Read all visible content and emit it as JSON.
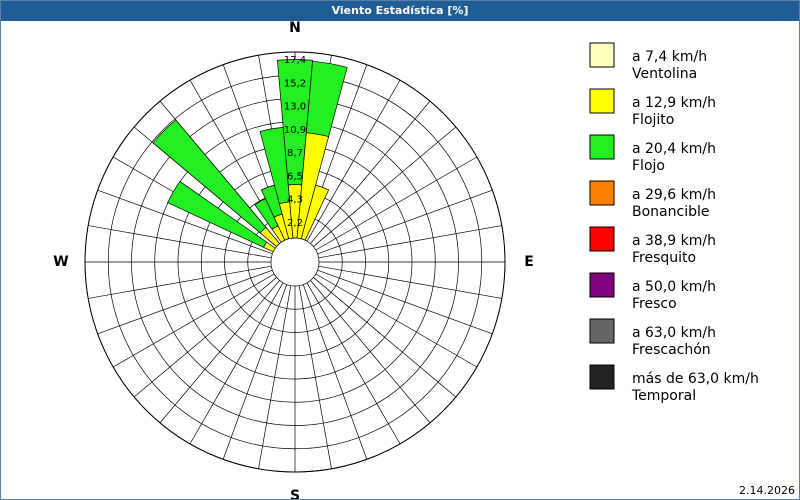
{
  "title": "Viento Estadística [%]",
  "footer": "2.14.2026",
  "chart_data": {
    "type": "wind_rose",
    "direction_labels": [
      "N",
      "E",
      "S",
      "W"
    ],
    "x": [
      300,
      315,
      330,
      340,
      350,
      0,
      10,
      20
    ],
    "sector_width": 10,
    "ylim": [
      0,
      17.4
    ],
    "yticks": [
      {
        "value": 2.175,
        "label": "2,2"
      },
      {
        "value": 4.35,
        "label": "4,3"
      },
      {
        "value": 6.525,
        "label": "6,5"
      },
      {
        "value": 8.7,
        "label": "8,7"
      },
      {
        "value": 10.875,
        "label": "10,9"
      },
      {
        "value": 13.05,
        "label": "13,0"
      },
      {
        "value": 15.225,
        "label": "15,2"
      },
      {
        "value": 17.4,
        "label": "17,4"
      }
    ],
    "series": [
      {
        "name": "a 7,4 km/h",
        "label": "Ventolina",
        "color": "#ffffc0",
        "values": [
          0,
          0,
          0,
          0,
          0,
          0,
          0,
          0
        ]
      },
      {
        "name": "a 12,9 km/h",
        "label": "Flojito",
        "color": "#ffff00",
        "values": [
          1.0,
          2.0,
          1.5,
          2.4,
          3.4,
          5.0,
          9.9,
          5.2
        ]
      },
      {
        "name": "a 20,4 km/h",
        "label": "Flojo",
        "color": "#22ee22",
        "values": [
          9.9,
          13.1,
          2.8,
          2.8,
          7.0,
          11.7,
          6.7,
          0
        ]
      },
      {
        "name": "a 29,6 km/h",
        "label": "Bonancible",
        "color": "#ff8000",
        "values": [
          0,
          0,
          0,
          0,
          0,
          0,
          0,
          0
        ]
      },
      {
        "name": "a 38,9 km/h",
        "label": "Fresquito",
        "color": "#ff0000",
        "values": [
          0,
          0,
          0,
          0,
          0,
          0,
          0,
          0
        ]
      },
      {
        "name": "a 50,0 km/h",
        "label": "Fresco",
        "color": "#800080",
        "values": [
          0,
          0,
          0,
          0,
          0,
          0,
          0,
          0
        ]
      },
      {
        "name": "a 63,0 km/h",
        "label": "Frescachón",
        "color": "#666666",
        "values": [
          0,
          0,
          0,
          0,
          0,
          0,
          0,
          0
        ]
      },
      {
        "name": "más de 63,0 km/h",
        "label": "Temporal",
        "color": "#222222",
        "values": [
          0,
          0,
          0,
          0,
          0,
          0,
          0,
          0
        ]
      }
    ]
  }
}
